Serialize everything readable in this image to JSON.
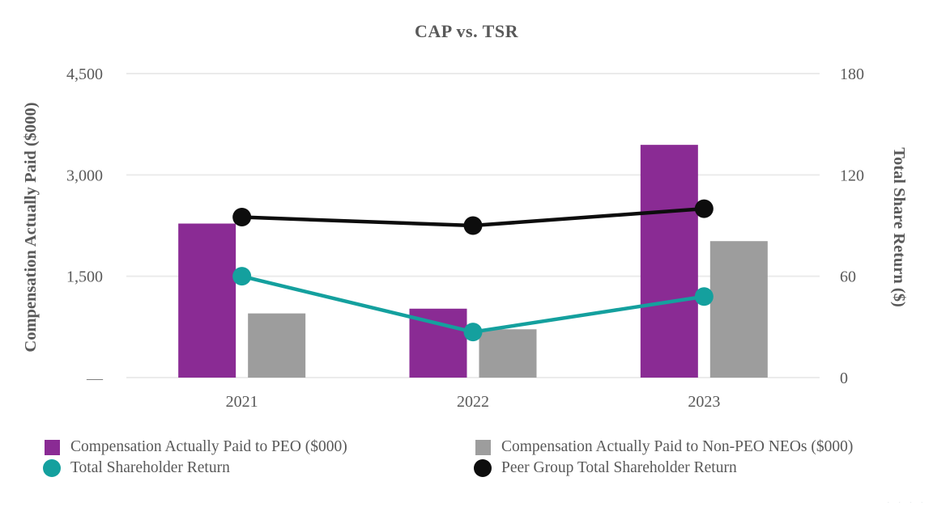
{
  "title": "CAP vs. TSR",
  "chart_data": {
    "type": "bar",
    "subtype": "combo-bar-line-dual-axis",
    "categories": [
      "2021",
      "2022",
      "2023"
    ],
    "series": [
      {
        "name": "Compensation Actually Paid to PEO ($000)",
        "type": "bar",
        "axis": "left",
        "color": "#8A2B94",
        "values": [
          2280,
          1020,
          3445
        ]
      },
      {
        "name": "Compensation Actually Paid to Non-PEO NEOs ($000)",
        "type": "bar",
        "axis": "left",
        "color": "#9D9D9D",
        "values": [
          950,
          715,
          2020
        ]
      },
      {
        "name": "Total Shareholder Return",
        "type": "line",
        "axis": "right",
        "color": "#14A09E",
        "values": [
          60,
          27,
          48
        ]
      },
      {
        "name": "Peer Group Total Shareholder Return",
        "type": "line",
        "axis": "right",
        "color": "#0D0D0D",
        "values": [
          95,
          90,
          100
        ]
      }
    ],
    "title": "CAP vs. TSR",
    "left_axis": {
      "label": "Compensation Actually Paid ($000)",
      "range": [
        0,
        4500
      ],
      "ticks": [
        0,
        1500,
        3000,
        4500
      ],
      "tick_labels": [
        "—",
        "1,500",
        "3,000",
        "4,500"
      ]
    },
    "right_axis": {
      "label": "Total Share Return ($)",
      "range": [
        0,
        180
      ],
      "ticks": [
        0,
        60,
        120,
        180
      ],
      "tick_labels": [
        "0",
        "60",
        "120",
        "180"
      ]
    },
    "grid": true,
    "legend_position": "bottom"
  },
  "legend": {
    "columns": [
      {
        "items": [
          {
            "marker": "square",
            "color": "#8A2B94",
            "label": "Compensation Actually Paid to PEO ($000)"
          },
          {
            "marker": "circle",
            "color": "#14A09E",
            "label": "Total Shareholder Return"
          }
        ]
      },
      {
        "items": [
          {
            "marker": "square",
            "color": "#9D9D9D",
            "label": "Compensation Actually Paid to Non-PEO NEOs ($000)"
          },
          {
            "marker": "circle",
            "color": "#0D0D0D",
            "label": "Peer Group Total Shareholder Return"
          }
        ]
      }
    ]
  },
  "colors": {
    "text": "#595959",
    "gridline": "#EBEBEB",
    "zero_dash": "#7F7F7F",
    "peo_bar": "#8A2B94",
    "nonpeo_bar": "#9D9D9D",
    "tsr_line": "#14A09E",
    "peer_line": "#0D0D0D"
  },
  "watermark_dots": "· · · ·"
}
